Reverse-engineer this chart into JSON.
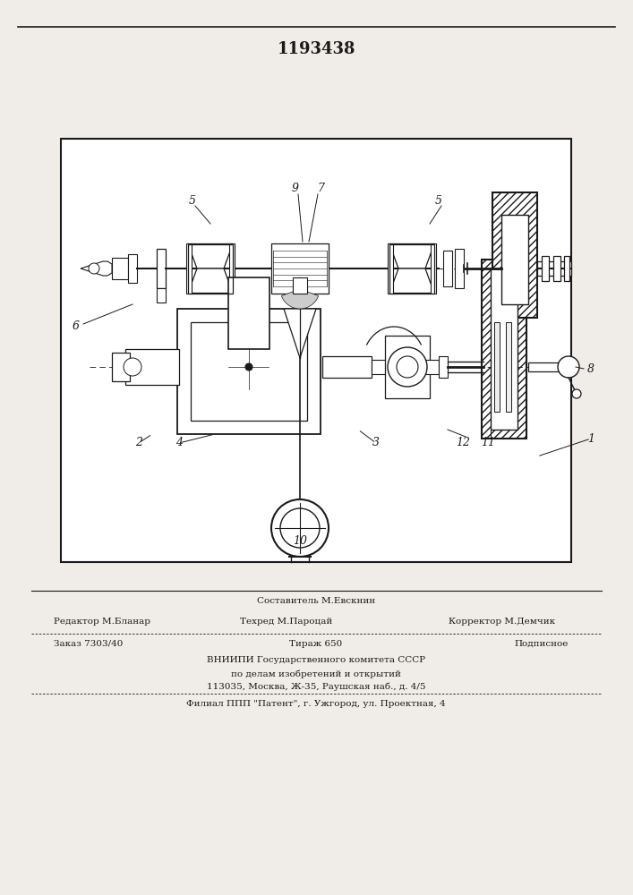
{
  "patent_number": "1193438",
  "bg_color": "#f0ede8",
  "white": "#ffffff",
  "dark": "#1a1a1a",
  "footer": {
    "editor": "Редактор М.Бланар",
    "composer_label": "Составитель М.Евскнин",
    "techred_label": "Техред М.Пароцай",
    "corrector_label": "Корректор М.Демчик",
    "order": "Заказ 7303/40",
    "tirazh": "Тираж 650",
    "podpisnoe": "Подписное",
    "vniip1": "ВНИИПИ Государственного комитета СССР",
    "vniip2": "по делам изобретений и открытий",
    "vniip3": "113035, Москва, Ж-35, Раушская наб., д. 4/5",
    "filial": "Филиал ППП \"Патент\", г. Ужгород, ул. Проектная, 4"
  }
}
